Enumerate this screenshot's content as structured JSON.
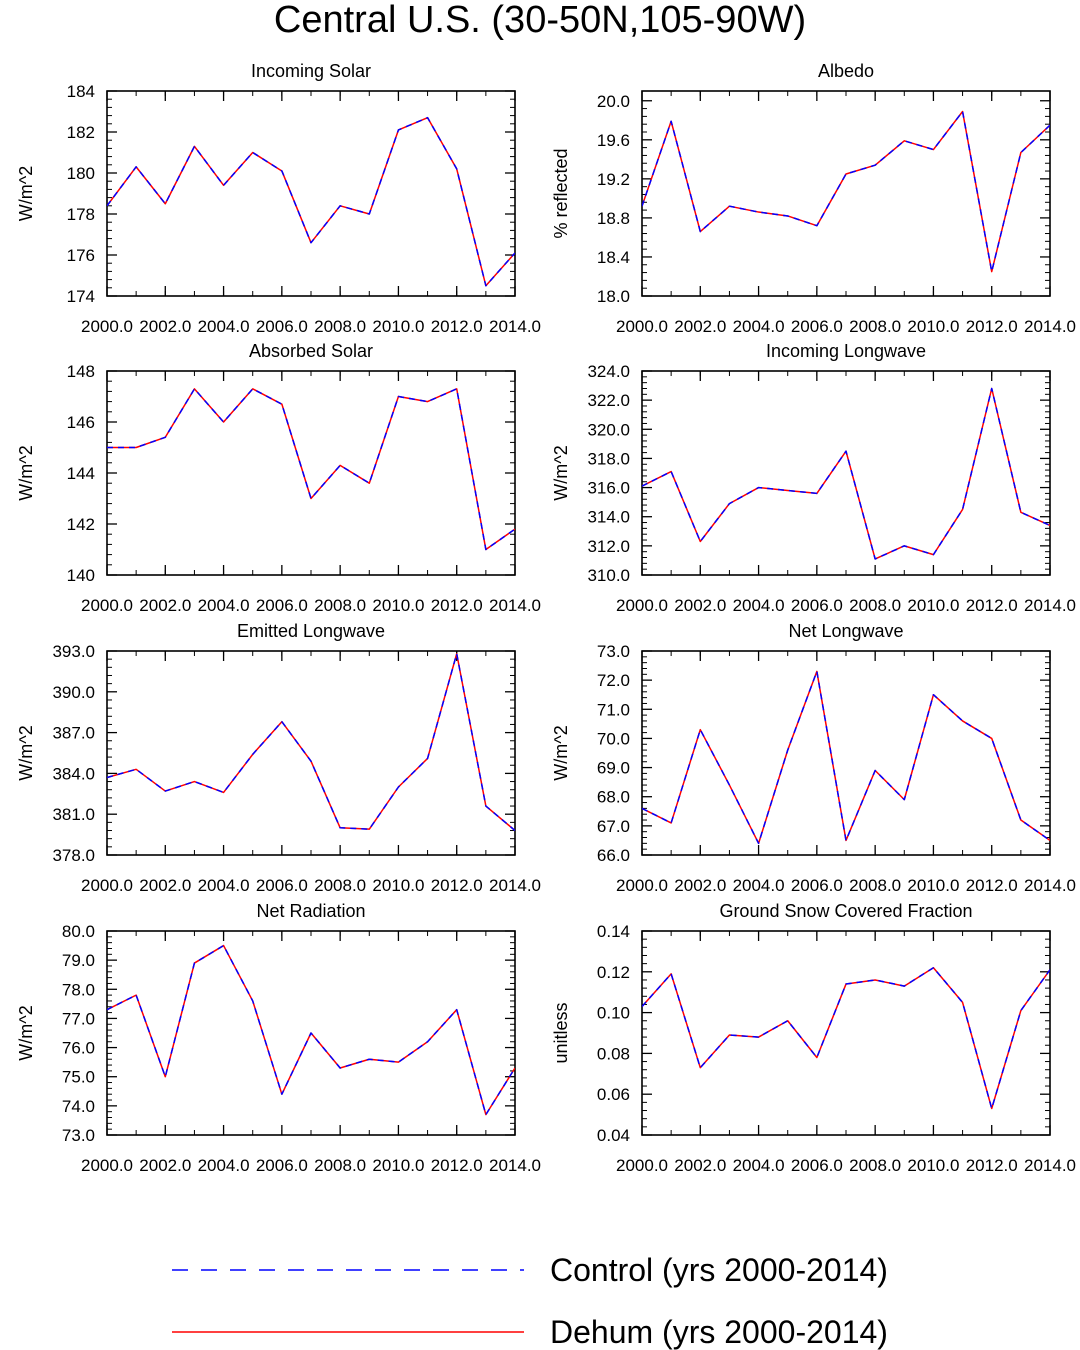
{
  "figure_title": "Central U.S. (30-50N,105-90W)",
  "legend": {
    "items": [
      {
        "label": "Control (yrs 2000-2014)",
        "color": "#0000ff",
        "style": "dashed"
      },
      {
        "label": "Dehum (yrs 2000-2014)",
        "color": "#ff0000",
        "style": "solid"
      }
    ]
  },
  "chart_data": [
    {
      "type": "line",
      "title": "Incoming Solar",
      "xlabel": "",
      "ylabel": "W/m^2",
      "xlim": [
        2000,
        2014
      ],
      "ylim": [
        174,
        184
      ],
      "xticks": [
        2000,
        2002,
        2004,
        2006,
        2008,
        2010,
        2012,
        2014
      ],
      "xtick_labels": [
        "2000.0",
        "2002.0",
        "2004.0",
        "2006.0",
        "2008.0",
        "2010.0",
        "2012.0",
        "2014.0"
      ],
      "yticks": [
        174,
        176,
        178,
        180,
        182,
        184
      ],
      "ytick_labels": [
        "174",
        "176",
        "178",
        "180",
        "182",
        "184"
      ],
      "x": [
        2000,
        2001,
        2002,
        2003,
        2004,
        2005,
        2006,
        2007,
        2008,
        2009,
        2010,
        2011,
        2012,
        2013,
        2014
      ],
      "series": [
        {
          "name": "Control (yrs 2000-2014)",
          "values": [
            178.4,
            180.3,
            178.5,
            181.3,
            179.4,
            181.0,
            180.1,
            176.6,
            178.4,
            178.0,
            182.1,
            182.7,
            180.2,
            174.5,
            176.1
          ]
        },
        {
          "name": "Dehum (yrs 2000-2014)",
          "values": [
            178.4,
            180.3,
            178.5,
            181.3,
            179.4,
            181.0,
            180.1,
            176.6,
            178.4,
            178.0,
            182.1,
            182.7,
            180.2,
            174.5,
            176.1
          ]
        }
      ]
    },
    {
      "type": "line",
      "title": "Albedo",
      "xlabel": "",
      "ylabel": "% reflected",
      "xlim": [
        2000,
        2014
      ],
      "ylim": [
        18.0,
        20.1
      ],
      "xticks": [
        2000,
        2002,
        2004,
        2006,
        2008,
        2010,
        2012,
        2014
      ],
      "xtick_labels": [
        "2000.0",
        "2002.0",
        "2004.0",
        "2006.0",
        "2008.0",
        "2010.0",
        "2012.0",
        "2014.0"
      ],
      "yticks": [
        18.0,
        18.4,
        18.8,
        19.2,
        19.6,
        20.0
      ],
      "ytick_labels": [
        "18.0",
        "18.4",
        "18.8",
        "19.2",
        "19.6",
        "20.0"
      ],
      "x": [
        2000,
        2001,
        2002,
        2003,
        2004,
        2005,
        2006,
        2007,
        2008,
        2009,
        2010,
        2011,
        2012,
        2013,
        2014
      ],
      "series": [
        {
          "name": "Control (yrs 2000-2014)",
          "values": [
            18.92,
            19.79,
            18.66,
            18.92,
            18.86,
            18.82,
            18.72,
            19.25,
            19.34,
            19.59,
            19.5,
            19.89,
            18.25,
            19.47,
            19.75
          ]
        },
        {
          "name": "Dehum (yrs 2000-2014)",
          "values": [
            18.92,
            19.79,
            18.66,
            18.92,
            18.86,
            18.82,
            18.72,
            19.25,
            19.34,
            19.59,
            19.5,
            19.89,
            18.25,
            19.47,
            19.75
          ]
        }
      ]
    },
    {
      "type": "line",
      "title": "Absorbed Solar",
      "xlabel": "",
      "ylabel": "W/m^2",
      "xlim": [
        2000,
        2014
      ],
      "ylim": [
        140,
        148
      ],
      "xticks": [
        2000,
        2002,
        2004,
        2006,
        2008,
        2010,
        2012,
        2014
      ],
      "xtick_labels": [
        "2000.0",
        "2002.0",
        "2004.0",
        "2006.0",
        "2008.0",
        "2010.0",
        "2012.0",
        "2014.0"
      ],
      "yticks": [
        140,
        142,
        144,
        146,
        148
      ],
      "ytick_labels": [
        "140",
        "142",
        "144",
        "146",
        "148"
      ],
      "x": [
        2000,
        2001,
        2002,
        2003,
        2004,
        2005,
        2006,
        2007,
        2008,
        2009,
        2010,
        2011,
        2012,
        2013,
        2014
      ],
      "series": [
        {
          "name": "Control (yrs 2000-2014)",
          "values": [
            145.0,
            145.0,
            145.4,
            147.3,
            146.0,
            147.3,
            146.7,
            143.0,
            144.3,
            143.6,
            147.0,
            146.8,
            147.3,
            141.0,
            141.8
          ]
        },
        {
          "name": "Dehum (yrs 2000-2014)",
          "values": [
            145.0,
            145.0,
            145.4,
            147.3,
            146.0,
            147.3,
            146.7,
            143.0,
            144.3,
            143.6,
            147.0,
            146.8,
            147.3,
            141.0,
            141.8
          ]
        }
      ]
    },
    {
      "type": "line",
      "title": "Incoming Longwave",
      "xlabel": "",
      "ylabel": "W/m^2",
      "xlim": [
        2000,
        2014
      ],
      "ylim": [
        310,
        324
      ],
      "xticks": [
        2000,
        2002,
        2004,
        2006,
        2008,
        2010,
        2012,
        2014
      ],
      "xtick_labels": [
        "2000.0",
        "2002.0",
        "2004.0",
        "2006.0",
        "2008.0",
        "2010.0",
        "2012.0",
        "2014.0"
      ],
      "yticks": [
        310,
        312,
        314,
        316,
        318,
        320,
        322,
        324
      ],
      "ytick_labels": [
        "310.0",
        "312.0",
        "314.0",
        "316.0",
        "318.0",
        "320.0",
        "322.0",
        "324.0"
      ],
      "x": [
        2000,
        2001,
        2002,
        2003,
        2004,
        2005,
        2006,
        2007,
        2008,
        2009,
        2010,
        2011,
        2012,
        2013,
        2014
      ],
      "series": [
        {
          "name": "Control (yrs 2000-2014)",
          "values": [
            316.1,
            317.1,
            312.3,
            314.9,
            316.0,
            315.8,
            315.6,
            318.5,
            311.1,
            312.0,
            311.4,
            314.5,
            322.8,
            314.3,
            313.4
          ]
        },
        {
          "name": "Dehum (yrs 2000-2014)",
          "values": [
            316.1,
            317.1,
            312.3,
            314.9,
            316.0,
            315.8,
            315.6,
            318.5,
            311.1,
            312.0,
            311.4,
            314.5,
            322.8,
            314.3,
            313.4
          ]
        }
      ]
    },
    {
      "type": "line",
      "title": "Emitted Longwave",
      "xlabel": "",
      "ylabel": "W/m^2",
      "xlim": [
        2000,
        2014
      ],
      "ylim": [
        378,
        393
      ],
      "xticks": [
        2000,
        2002,
        2004,
        2006,
        2008,
        2010,
        2012,
        2014
      ],
      "xtick_labels": [
        "2000.0",
        "2002.0",
        "2004.0",
        "2006.0",
        "2008.0",
        "2010.0",
        "2012.0",
        "2014.0"
      ],
      "yticks": [
        378,
        381,
        384,
        387,
        390,
        393
      ],
      "ytick_labels": [
        "378.0",
        "381.0",
        "384.0",
        "387.0",
        "390.0",
        "393.0"
      ],
      "x": [
        2000,
        2001,
        2002,
        2003,
        2004,
        2005,
        2006,
        2007,
        2008,
        2009,
        2010,
        2011,
        2012,
        2013,
        2014
      ],
      "series": [
        {
          "name": "Control (yrs 2000-2014)",
          "values": [
            383.7,
            384.3,
            382.7,
            383.4,
            382.6,
            385.4,
            387.8,
            384.9,
            380.0,
            379.9,
            383.0,
            385.1,
            392.8,
            381.6,
            379.8
          ]
        },
        {
          "name": "Dehum (yrs 2000-2014)",
          "values": [
            383.7,
            384.3,
            382.7,
            383.4,
            382.6,
            385.4,
            387.8,
            384.9,
            380.0,
            379.9,
            383.0,
            385.1,
            392.8,
            381.6,
            379.8
          ]
        }
      ]
    },
    {
      "type": "line",
      "title": "Net Longwave",
      "xlabel": "",
      "ylabel": "W/m^2",
      "xlim": [
        2000,
        2014
      ],
      "ylim": [
        66,
        73
      ],
      "xticks": [
        2000,
        2002,
        2004,
        2006,
        2008,
        2010,
        2012,
        2014
      ],
      "xtick_labels": [
        "2000.0",
        "2002.0",
        "2004.0",
        "2006.0",
        "2008.0",
        "2010.0",
        "2012.0",
        "2014.0"
      ],
      "yticks": [
        66,
        67,
        68,
        69,
        70,
        71,
        72,
        73
      ],
      "ytick_labels": [
        "66.0",
        "67.0",
        "68.0",
        "69.0",
        "70.0",
        "71.0",
        "72.0",
        "73.0"
      ],
      "x": [
        2000,
        2001,
        2002,
        2003,
        2004,
        2005,
        2006,
        2007,
        2008,
        2009,
        2010,
        2011,
        2012,
        2013,
        2014
      ],
      "series": [
        {
          "name": "Control (yrs 2000-2014)",
          "values": [
            67.6,
            67.1,
            70.3,
            68.4,
            66.4,
            69.6,
            72.3,
            66.5,
            68.9,
            67.9,
            71.5,
            70.6,
            70.0,
            67.2,
            66.5
          ]
        },
        {
          "name": "Dehum (yrs 2000-2014)",
          "values": [
            67.6,
            67.1,
            70.3,
            68.4,
            66.4,
            69.6,
            72.3,
            66.5,
            68.9,
            67.9,
            71.5,
            70.6,
            70.0,
            67.2,
            66.5
          ]
        }
      ]
    },
    {
      "type": "line",
      "title": "Net Radiation",
      "xlabel": "",
      "ylabel": "W/m^2",
      "xlim": [
        2000,
        2014
      ],
      "ylim": [
        73,
        80
      ],
      "xticks": [
        2000,
        2002,
        2004,
        2006,
        2008,
        2010,
        2012,
        2014
      ],
      "xtick_labels": [
        "2000.0",
        "2002.0",
        "2004.0",
        "2006.0",
        "2008.0",
        "2010.0",
        "2012.0",
        "2014.0"
      ],
      "yticks": [
        73,
        74,
        75,
        76,
        77,
        78,
        79,
        80
      ],
      "ytick_labels": [
        "73.0",
        "74.0",
        "75.0",
        "76.0",
        "77.0",
        "78.0",
        "79.0",
        "80.0"
      ],
      "x": [
        2000,
        2001,
        2002,
        2003,
        2004,
        2005,
        2006,
        2007,
        2008,
        2009,
        2010,
        2011,
        2012,
        2013,
        2014
      ],
      "series": [
        {
          "name": "Control (yrs 2000-2014)",
          "values": [
            77.3,
            77.8,
            75.0,
            78.9,
            79.5,
            77.6,
            74.4,
            76.5,
            75.3,
            75.6,
            75.5,
            76.2,
            77.3,
            73.7,
            75.3
          ]
        },
        {
          "name": "Dehum (yrs 2000-2014)",
          "values": [
            77.3,
            77.8,
            75.0,
            78.9,
            79.5,
            77.6,
            74.4,
            76.5,
            75.3,
            75.6,
            75.5,
            76.2,
            77.3,
            73.7,
            75.3
          ]
        }
      ]
    },
    {
      "type": "line",
      "title": "Ground Snow Covered Fraction",
      "xlabel": "",
      "ylabel": "unitless",
      "xlim": [
        2000,
        2014
      ],
      "ylim": [
        0.04,
        0.14
      ],
      "xticks": [
        2000,
        2002,
        2004,
        2006,
        2008,
        2010,
        2012,
        2014
      ],
      "xtick_labels": [
        "2000.0",
        "2002.0",
        "2004.0",
        "2006.0",
        "2008.0",
        "2010.0",
        "2012.0",
        "2014.0"
      ],
      "yticks": [
        0.04,
        0.06,
        0.08,
        0.1,
        0.12,
        0.14
      ],
      "ytick_labels": [
        "0.04",
        "0.06",
        "0.08",
        "0.10",
        "0.12",
        "0.14"
      ],
      "x": [
        2000,
        2001,
        2002,
        2003,
        2004,
        2005,
        2006,
        2007,
        2008,
        2009,
        2010,
        2011,
        2012,
        2013,
        2014
      ],
      "series": [
        {
          "name": "Control (yrs 2000-2014)",
          "values": [
            0.103,
            0.119,
            0.073,
            0.089,
            0.088,
            0.096,
            0.078,
            0.114,
            0.116,
            0.113,
            0.122,
            0.105,
            0.053,
            0.101,
            0.121
          ]
        },
        {
          "name": "Dehum (yrs 2000-2014)",
          "values": [
            0.103,
            0.119,
            0.073,
            0.089,
            0.088,
            0.096,
            0.078,
            0.114,
            0.116,
            0.113,
            0.122,
            0.105,
            0.053,
            0.101,
            0.121
          ]
        }
      ]
    }
  ]
}
